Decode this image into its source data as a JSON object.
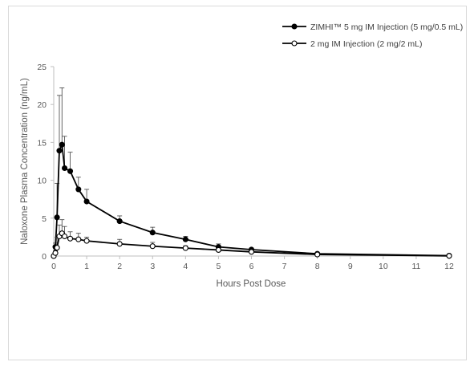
{
  "chart_data": {
    "type": "line",
    "title": "",
    "xlabel": "Hours Post Dose",
    "ylabel": "Naloxone Plasma Concentration (ng/mL)",
    "xlim": [
      0,
      12
    ],
    "ylim": [
      0,
      25
    ],
    "xticks": [
      0,
      1,
      2,
      3,
      4,
      5,
      6,
      7,
      8,
      9,
      10,
      11,
      12
    ],
    "yticks": [
      0,
      5,
      10,
      15,
      20,
      25
    ],
    "grid": false,
    "legend_position": "top-right",
    "series": [
      {
        "name": "ZIMHI™ 5 mg IM Injection (5 mg/0.5 mL)",
        "marker": "filled-circle",
        "color": "#000000",
        "x": [
          0,
          0.05,
          0.1,
          0.17,
          0.25,
          0.33,
          0.5,
          0.75,
          1,
          2,
          3,
          4,
          5,
          6,
          8,
          12
        ],
        "y": [
          0,
          1.2,
          5.1,
          13.9,
          14.7,
          11.6,
          11.2,
          8.8,
          7.2,
          4.6,
          3.1,
          2.2,
          1.2,
          0.85,
          0.3,
          0.05
        ],
        "error": [
          0,
          0.5,
          4.5,
          7.3,
          7.5,
          4.2,
          2.5,
          1.6,
          1.6,
          0.7,
          0.7,
          0.4,
          0.4,
          0.2,
          0.1,
          0.05
        ]
      },
      {
        "name": "2 mg IM Injection (2 mg/2 mL)",
        "marker": "open-circle",
        "color": "#000000",
        "x": [
          0,
          0.05,
          0.1,
          0.17,
          0.25,
          0.33,
          0.5,
          0.75,
          1,
          2,
          3,
          4,
          5,
          6,
          8,
          12
        ],
        "y": [
          0,
          0.4,
          1.1,
          2.6,
          3.0,
          2.6,
          2.3,
          2.2,
          2.0,
          1.6,
          1.3,
          1.05,
          0.8,
          0.55,
          0.2,
          0.02
        ],
        "error": [
          0,
          0.3,
          1.4,
          1.5,
          1.8,
          1.3,
          0.9,
          0.8,
          0.5,
          0.6,
          0.5,
          0.3,
          0.2,
          0.2,
          0.1,
          0.02
        ]
      }
    ]
  }
}
